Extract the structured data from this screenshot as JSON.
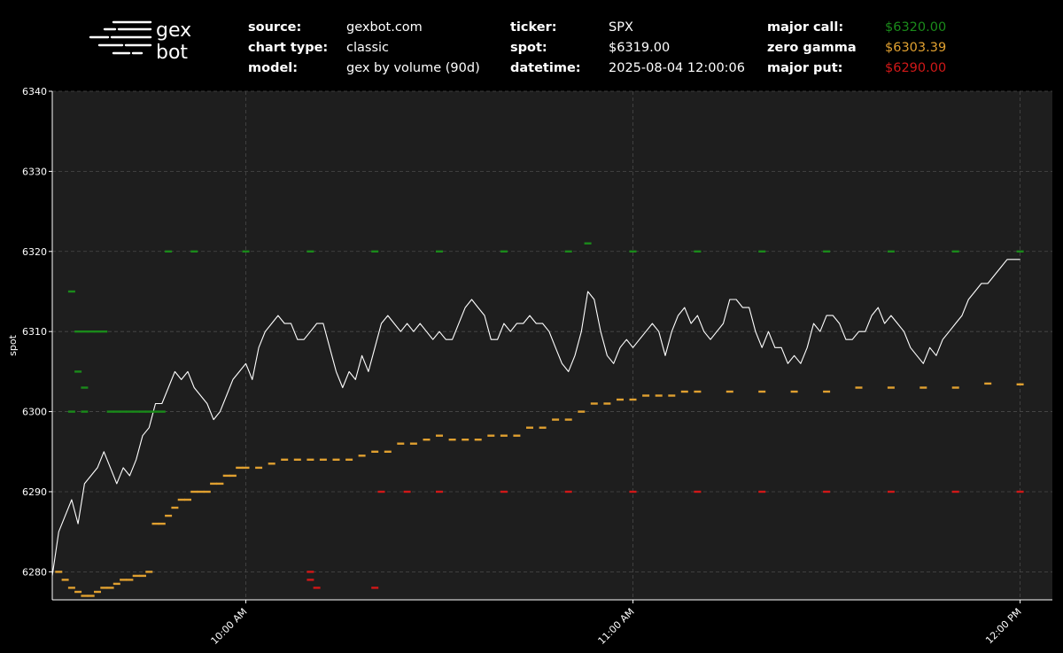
{
  "logo": {
    "line1": "gex",
    "line2": "bot"
  },
  "header": {
    "source_label": "source:",
    "source_value": "gexbot.com",
    "chart_type_label": "chart type:",
    "chart_type_value": "classic",
    "model_label": "model:",
    "model_value": "gex by volume (90d)",
    "ticker_label": "ticker:",
    "ticker_value": "SPX",
    "spot_label": "spot:",
    "spot_value": "$6319.00",
    "datetime_label": "datetime:",
    "datetime_value": "2025-08-04 12:00:06",
    "major_call_label": "major call:",
    "major_call_value": "$6320.00",
    "zero_gamma_label": "zero gamma",
    "zero_gamma_value": "$6303.39",
    "major_put_label": "major put:",
    "major_put_value": "$6290.00"
  },
  "colors": {
    "background": "#000000",
    "plot_background": "#1e1e1e",
    "spot": "#ffffff",
    "major_call": "#1a8a1a",
    "zero_gamma": "#e0a030",
    "major_put": "#d01818"
  },
  "chart_data": {
    "type": "line",
    "title": "",
    "xlabel": "",
    "ylabel": "spot",
    "ylim": [
      6276.5,
      6340
    ],
    "yticks": [
      6280,
      6290,
      6300,
      6310,
      6320,
      6330,
      6340
    ],
    "xlim": [
      "09:30",
      "12:05"
    ],
    "xticks": [
      {
        "t": "10:00",
        "label": "10:00 AM"
      },
      {
        "t": "11:00",
        "label": "11:00 AM"
      },
      {
        "t": "12:00",
        "label": "12:00 PM"
      }
    ],
    "grid": true,
    "series": [
      {
        "key": "spot",
        "style": "line",
        "points": [
          [
            "09:30",
            6279.5
          ],
          [
            "09:31",
            6285
          ],
          [
            "09:32",
            6287
          ],
          [
            "09:33",
            6289
          ],
          [
            "09:34",
            6286
          ],
          [
            "09:35",
            6291
          ],
          [
            "09:36",
            6292
          ],
          [
            "09:37",
            6293
          ],
          [
            "09:38",
            6295
          ],
          [
            "09:39",
            6293
          ],
          [
            "09:40",
            6291
          ],
          [
            "09:41",
            6293
          ],
          [
            "09:42",
            6292
          ],
          [
            "09:43",
            6294
          ],
          [
            "09:44",
            6297
          ],
          [
            "09:45",
            6298
          ],
          [
            "09:46",
            6301
          ],
          [
            "09:47",
            6301
          ],
          [
            "09:48",
            6303
          ],
          [
            "09:49",
            6305
          ],
          [
            "09:50",
            6304
          ],
          [
            "09:51",
            6305
          ],
          [
            "09:52",
            6303
          ],
          [
            "09:53",
            6302
          ],
          [
            "09:54",
            6301
          ],
          [
            "09:55",
            6299
          ],
          [
            "09:56",
            6300
          ],
          [
            "09:57",
            6302
          ],
          [
            "09:58",
            6304
          ],
          [
            "09:59",
            6305
          ],
          [
            "10:00",
            6306
          ],
          [
            "10:01",
            6304
          ],
          [
            "10:02",
            6308
          ],
          [
            "10:03",
            6310
          ],
          [
            "10:04",
            6311
          ],
          [
            "10:05",
            6312
          ],
          [
            "10:06",
            6311
          ],
          [
            "10:07",
            6311
          ],
          [
            "10:08",
            6309
          ],
          [
            "10:09",
            6309
          ],
          [
            "10:10",
            6310
          ],
          [
            "10:11",
            6311
          ],
          [
            "10:12",
            6311
          ],
          [
            "10:13",
            6308
          ],
          [
            "10:14",
            6305
          ],
          [
            "10:15",
            6303
          ],
          [
            "10:16",
            6305
          ],
          [
            "10:17",
            6304
          ],
          [
            "10:18",
            6307
          ],
          [
            "10:19",
            6305
          ],
          [
            "10:20",
            6308
          ],
          [
            "10:21",
            6311
          ],
          [
            "10:22",
            6312
          ],
          [
            "10:23",
            6311
          ],
          [
            "10:24",
            6310
          ],
          [
            "10:25",
            6311
          ],
          [
            "10:26",
            6310
          ],
          [
            "10:27",
            6311
          ],
          [
            "10:28",
            6310
          ],
          [
            "10:29",
            6309
          ],
          [
            "10:30",
            6310
          ],
          [
            "10:31",
            6309
          ],
          [
            "10:32",
            6309
          ],
          [
            "10:33",
            6311
          ],
          [
            "10:34",
            6313
          ],
          [
            "10:35",
            6314
          ],
          [
            "10:36",
            6313
          ],
          [
            "10:37",
            6312
          ],
          [
            "10:38",
            6309
          ],
          [
            "10:39",
            6309
          ],
          [
            "10:40",
            6311
          ],
          [
            "10:41",
            6310
          ],
          [
            "10:42",
            6311
          ],
          [
            "10:43",
            6311
          ],
          [
            "10:44",
            6312
          ],
          [
            "10:45",
            6311
          ],
          [
            "10:46",
            6311
          ],
          [
            "10:47",
            6310
          ],
          [
            "10:48",
            6308
          ],
          [
            "10:49",
            6306
          ],
          [
            "10:50",
            6305
          ],
          [
            "10:51",
            6307
          ],
          [
            "10:52",
            6310
          ],
          [
            "10:53",
            6315
          ],
          [
            "10:54",
            6314
          ],
          [
            "10:55",
            6310
          ],
          [
            "10:56",
            6307
          ],
          [
            "10:57",
            6306
          ],
          [
            "10:58",
            6308
          ],
          [
            "10:59",
            6309
          ],
          [
            "11:00",
            6308
          ],
          [
            "11:01",
            6309
          ],
          [
            "11:02",
            6310
          ],
          [
            "11:03",
            6311
          ],
          [
            "11:04",
            6310
          ],
          [
            "11:05",
            6307
          ],
          [
            "11:06",
            6310
          ],
          [
            "11:07",
            6312
          ],
          [
            "11:08",
            6313
          ],
          [
            "11:09",
            6311
          ],
          [
            "11:10",
            6312
          ],
          [
            "11:11",
            6310
          ],
          [
            "11:12",
            6309
          ],
          [
            "11:13",
            6310
          ],
          [
            "11:14",
            6311
          ],
          [
            "11:15",
            6314
          ],
          [
            "11:16",
            6314
          ],
          [
            "11:17",
            6313
          ],
          [
            "11:18",
            6313
          ],
          [
            "11:19",
            6310
          ],
          [
            "11:20",
            6308
          ],
          [
            "11:21",
            6310
          ],
          [
            "11:22",
            6308
          ],
          [
            "11:23",
            6308
          ],
          [
            "11:24",
            6306
          ],
          [
            "11:25",
            6307
          ],
          [
            "11:26",
            6306
          ],
          [
            "11:27",
            6308
          ],
          [
            "11:28",
            6311
          ],
          [
            "11:29",
            6310
          ],
          [
            "11:30",
            6312
          ],
          [
            "11:31",
            6312
          ],
          [
            "11:32",
            6311
          ],
          [
            "11:33",
            6309
          ],
          [
            "11:34",
            6309
          ],
          [
            "11:35",
            6310
          ],
          [
            "11:36",
            6310
          ],
          [
            "11:37",
            6312
          ],
          [
            "11:38",
            6313
          ],
          [
            "11:39",
            6311
          ],
          [
            "11:40",
            6312
          ],
          [
            "11:41",
            6311
          ],
          [
            "11:42",
            6310
          ],
          [
            "11:43",
            6308
          ],
          [
            "11:44",
            6307
          ],
          [
            "11:45",
            6306
          ],
          [
            "11:46",
            6308
          ],
          [
            "11:47",
            6307
          ],
          [
            "11:48",
            6309
          ],
          [
            "11:49",
            6310
          ],
          [
            "11:50",
            6311
          ],
          [
            "11:51",
            6312
          ],
          [
            "11:52",
            6314
          ],
          [
            "11:53",
            6315
          ],
          [
            "11:54",
            6316
          ],
          [
            "11:55",
            6316
          ],
          [
            "11:56",
            6317
          ],
          [
            "11:57",
            6318
          ],
          [
            "11:58",
            6319
          ],
          [
            "11:59",
            6319
          ],
          [
            "12:00",
            6319
          ]
        ]
      },
      {
        "key": "major_call",
        "style": "dots",
        "points": [
          [
            "09:33",
            6315
          ],
          [
            "09:34",
            6310
          ],
          [
            "09:35",
            6310
          ],
          [
            "09:36",
            6310
          ],
          [
            "09:37",
            6310
          ],
          [
            "09:38",
            6310
          ],
          [
            "09:34",
            6305
          ],
          [
            "09:35",
            6303
          ],
          [
            "09:35",
            6300
          ],
          [
            "09:33",
            6300
          ],
          [
            "09:39",
            6300
          ],
          [
            "09:40",
            6300
          ],
          [
            "09:41",
            6300
          ],
          [
            "09:42",
            6300
          ],
          [
            "09:43",
            6300
          ],
          [
            "09:44",
            6300
          ],
          [
            "09:45",
            6300
          ],
          [
            "09:46",
            6300
          ],
          [
            "09:47",
            6300
          ],
          [
            "09:48",
            6320
          ],
          [
            "09:52",
            6320
          ],
          [
            "10:00",
            6320
          ],
          [
            "10:10",
            6320
          ],
          [
            "10:20",
            6320
          ],
          [
            "10:30",
            6320
          ],
          [
            "10:40",
            6320
          ],
          [
            "10:50",
            6320
          ],
          [
            "10:53",
            6321
          ],
          [
            "11:00",
            6320
          ],
          [
            "11:10",
            6320
          ],
          [
            "11:20",
            6320
          ],
          [
            "11:30",
            6320
          ],
          [
            "11:40",
            6320
          ],
          [
            "11:50",
            6320
          ],
          [
            "12:00",
            6320
          ]
        ]
      },
      {
        "key": "zero_gamma",
        "style": "dots",
        "points": [
          [
            "09:31",
            6280
          ],
          [
            "09:32",
            6279
          ],
          [
            "09:33",
            6278
          ],
          [
            "09:34",
            6277.5
          ],
          [
            "09:35",
            6277
          ],
          [
            "09:36",
            6277
          ],
          [
            "09:37",
            6277.5
          ],
          [
            "09:38",
            6278
          ],
          [
            "09:39",
            6278
          ],
          [
            "09:40",
            6278.5
          ],
          [
            "09:41",
            6279
          ],
          [
            "09:42",
            6279
          ],
          [
            "09:43",
            6279.5
          ],
          [
            "09:44",
            6279.5
          ],
          [
            "09:45",
            6280
          ],
          [
            "09:46",
            6286
          ],
          [
            "09:47",
            6286
          ],
          [
            "09:48",
            6287
          ],
          [
            "09:49",
            6288
          ],
          [
            "09:50",
            6289
          ],
          [
            "09:51",
            6289
          ],
          [
            "09:52",
            6290
          ],
          [
            "09:53",
            6290
          ],
          [
            "09:54",
            6290
          ],
          [
            "09:55",
            6291
          ],
          [
            "09:56",
            6291
          ],
          [
            "09:57",
            6292
          ],
          [
            "09:58",
            6292
          ],
          [
            "09:59",
            6293
          ],
          [
            "10:00",
            6293
          ],
          [
            "10:02",
            6293
          ],
          [
            "10:04",
            6293.5
          ],
          [
            "10:06",
            6294
          ],
          [
            "10:08",
            6294
          ],
          [
            "10:10",
            6294
          ],
          [
            "10:12",
            6294
          ],
          [
            "10:14",
            6294
          ],
          [
            "10:16",
            6294
          ],
          [
            "10:18",
            6294.5
          ],
          [
            "10:20",
            6295
          ],
          [
            "10:22",
            6295
          ],
          [
            "10:24",
            6296
          ],
          [
            "10:26",
            6296
          ],
          [
            "10:28",
            6296.5
          ],
          [
            "10:30",
            6297
          ],
          [
            "10:32",
            6296.5
          ],
          [
            "10:34",
            6296.5
          ],
          [
            "10:36",
            6296.5
          ],
          [
            "10:38",
            6297
          ],
          [
            "10:40",
            6297
          ],
          [
            "10:42",
            6297
          ],
          [
            "10:44",
            6298
          ],
          [
            "10:46",
            6298
          ],
          [
            "10:48",
            6299
          ],
          [
            "10:50",
            6299
          ],
          [
            "10:52",
            6300
          ],
          [
            "10:54",
            6301
          ],
          [
            "10:56",
            6301
          ],
          [
            "10:58",
            6301.5
          ],
          [
            "11:00",
            6301.5
          ],
          [
            "11:02",
            6302
          ],
          [
            "11:04",
            6302
          ],
          [
            "11:06",
            6302
          ],
          [
            "11:08",
            6302.5
          ],
          [
            "11:10",
            6302.5
          ],
          [
            "11:15",
            6302.5
          ],
          [
            "11:20",
            6302.5
          ],
          [
            "11:25",
            6302.5
          ],
          [
            "11:30",
            6302.5
          ],
          [
            "11:35",
            6303
          ],
          [
            "11:40",
            6303
          ],
          [
            "11:45",
            6303
          ],
          [
            "11:50",
            6303
          ],
          [
            "11:55",
            6303.5
          ],
          [
            "12:00",
            6303.4
          ]
        ]
      },
      {
        "key": "major_put",
        "style": "dots",
        "points": [
          [
            "10:10",
            6279
          ],
          [
            "10:10",
            6280
          ],
          [
            "10:11",
            6278
          ],
          [
            "10:20",
            6278
          ],
          [
            "10:21",
            6290
          ],
          [
            "10:25",
            6290
          ],
          [
            "10:30",
            6290
          ],
          [
            "10:40",
            6290
          ],
          [
            "10:50",
            6290
          ],
          [
            "11:00",
            6290
          ],
          [
            "11:10",
            6290
          ],
          [
            "11:20",
            6290
          ],
          [
            "11:30",
            6290
          ],
          [
            "11:40",
            6290
          ],
          [
            "11:50",
            6290
          ],
          [
            "12:00",
            6290
          ]
        ]
      }
    ]
  }
}
